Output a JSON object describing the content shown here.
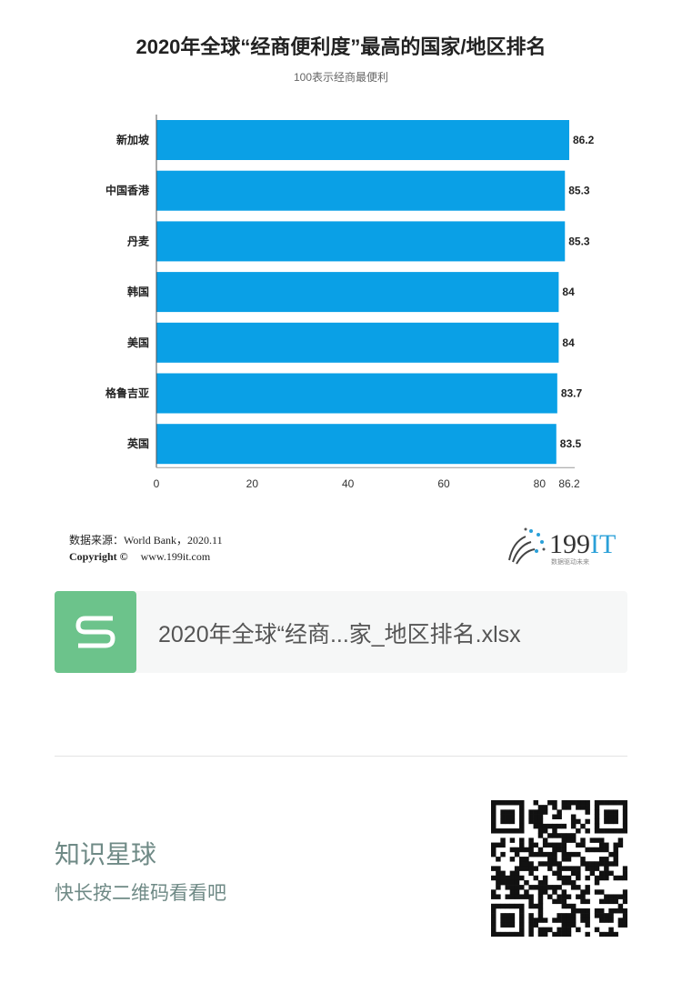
{
  "chart_data": {
    "type": "bar",
    "orientation": "horizontal",
    "title": "2020年全球“经商便利度”最高的国家/地区排名",
    "subtitle": "100表示经商最便利",
    "categories": [
      "新加坡",
      "中国香港",
      "丹麦",
      "韩国",
      "美国",
      "格鲁吉亚",
      "英国"
    ],
    "values": [
      86.2,
      85.3,
      85.3,
      84,
      84,
      83.7,
      83.5
    ],
    "xlim": [
      0,
      86.2
    ],
    "xticks": [
      "0",
      "20",
      "40",
      "60",
      "80",
      "86.2"
    ],
    "xtick_values": [
      0,
      20,
      40,
      60,
      80,
      86.2
    ],
    "grid": false,
    "bar_color": "#0aa0e6"
  },
  "footer": {
    "source": "数据来源：World Bank，2020.11",
    "copyright_label": "Copyright ©",
    "copyright_url": "www.199it.com",
    "logo_text": "199IT",
    "logo_tagline": "数据驱动未来"
  },
  "attachment": {
    "file_name": "2020年全球“经商...家_地区排名.xlsx",
    "icon": "spreadsheet-s-icon",
    "icon_color": "#6cc38b"
  },
  "promo": {
    "title": "知识星球",
    "hint": "快长按二维码看看吧"
  }
}
